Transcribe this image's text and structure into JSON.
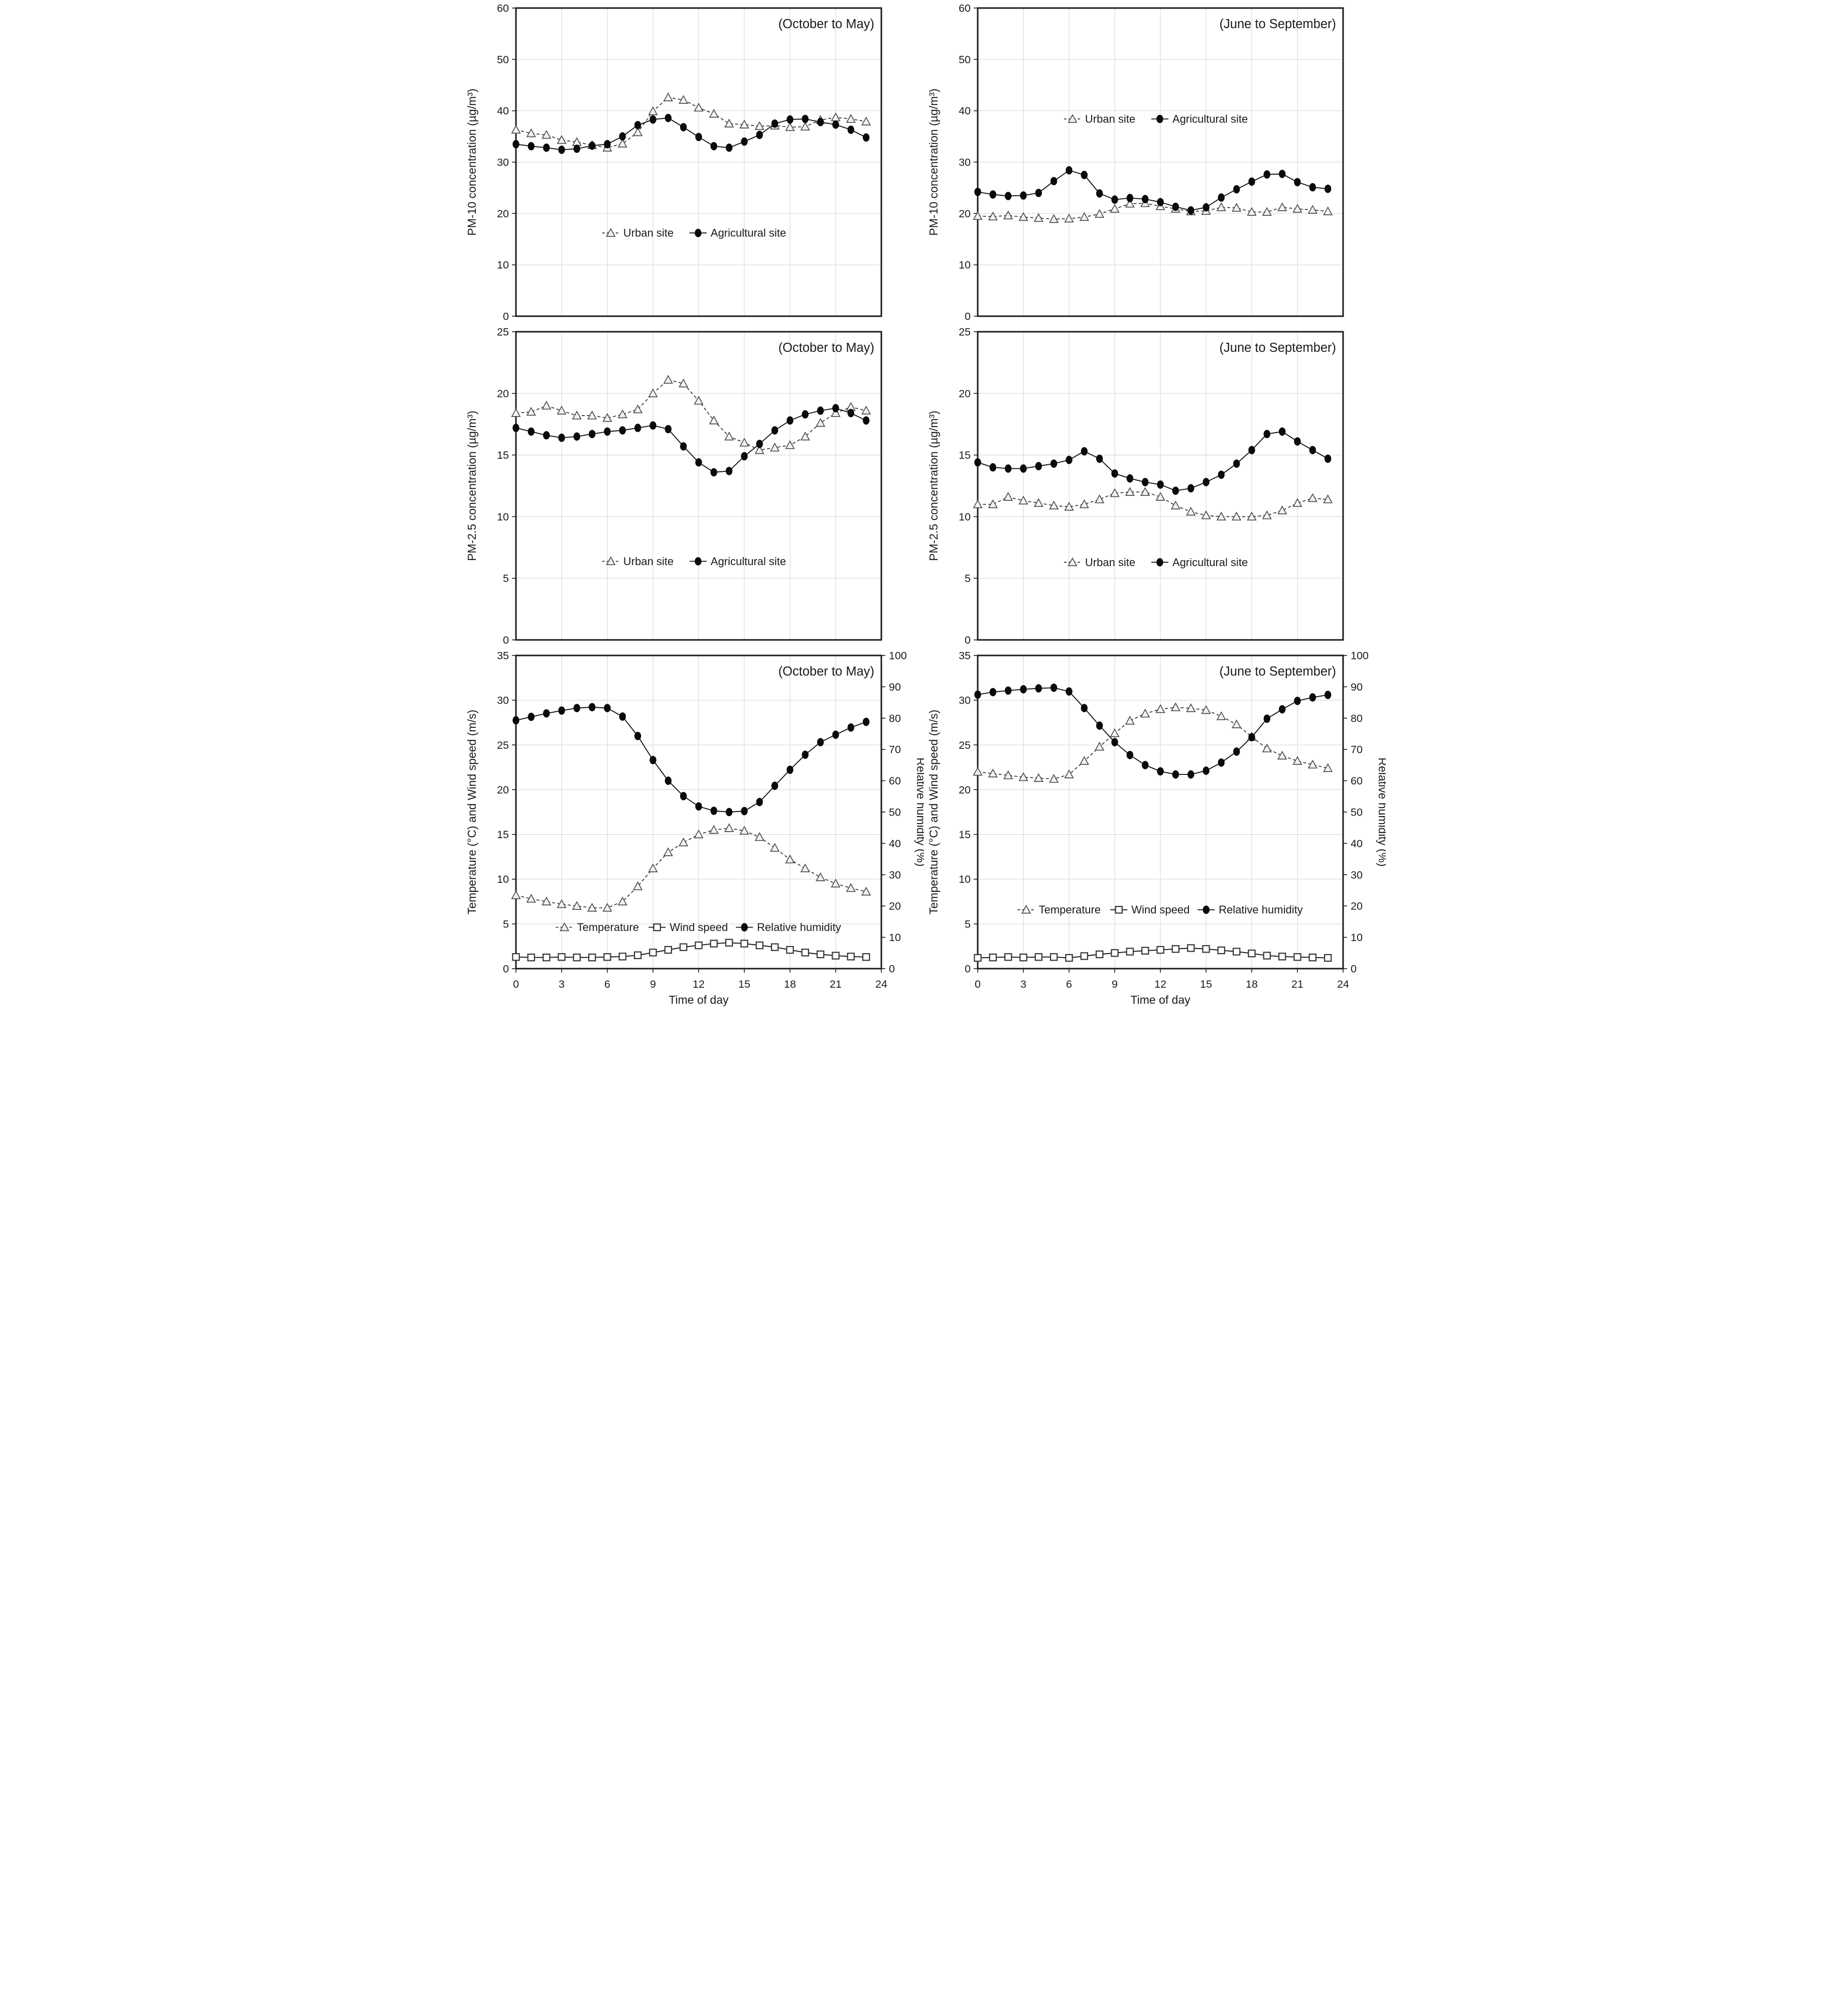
{
  "figure": {
    "background": "#ffffff",
    "panel_layout": "2 columns x 3 rows",
    "x_axis": {
      "label": "Time of day",
      "range": [
        0,
        24
      ],
      "ticks": [
        0,
        3,
        6,
        9,
        12,
        15,
        18,
        21,
        24
      ]
    }
  },
  "colors": {
    "background": "#ffffff",
    "plot_border": "#1a1a1a",
    "gridline": "#d9d9d9",
    "series_line": "#111111",
    "dashed_line": "#333333",
    "triangle_fill": "#f2f2f2",
    "triangle_stroke": "#4d4d4d",
    "square_fill": "#ffffff",
    "square_stroke": "#333333",
    "circle_fill": "#0a0a0a",
    "text": "#1a1a1a"
  },
  "chart_data": [
    {
      "id": "pm10-oct-may",
      "type": "line",
      "title": "(October to May)",
      "ylabel": "PM-10 concentration (µg/m³)",
      "ylim": [
        0,
        60
      ],
      "ystep": 10,
      "xlabel": null,
      "show_x_labels": false,
      "x_ticks": [
        0,
        3,
        6,
        9,
        12,
        15,
        18,
        21,
        24
      ],
      "grid": true,
      "legend_position": "inside-center",
      "legend_y_frac": 0.73,
      "x": [
        0,
        1,
        2,
        3,
        4,
        5,
        6,
        7,
        8,
        9,
        10,
        11,
        12,
        13,
        14,
        15,
        16,
        17,
        18,
        19,
        20,
        21,
        22,
        23
      ],
      "series": [
        {
          "name": "Urban site",
          "marker": "triangle",
          "line": "dashed",
          "axis": "y",
          "values": [
            36.3,
            35.6,
            35.3,
            34.3,
            33.9,
            33.3,
            32.8,
            33.6,
            35.8,
            39.9,
            42.6,
            42.1,
            40.6,
            39.4,
            37.5,
            37.3,
            37.0,
            37.1,
            36.8,
            36.9,
            38.2,
            38.7,
            38.4,
            37.9
          ]
        },
        {
          "name": "Agricultural site",
          "marker": "circle",
          "line": "solid",
          "axis": "y",
          "values": [
            33.5,
            33.1,
            32.8,
            32.4,
            32.6,
            33.2,
            33.5,
            35.0,
            37.2,
            38.3,
            38.6,
            36.8,
            34.9,
            33.1,
            32.8,
            34.0,
            35.3,
            37.5,
            38.3,
            38.4,
            37.8,
            37.3,
            36.3,
            34.8
          ]
        }
      ]
    },
    {
      "id": "pm10-jun-sep",
      "type": "line",
      "title": "(June to September)",
      "ylabel": "PM-10 concentration (µg/m³)",
      "ylim": [
        0,
        60
      ],
      "ystep": 10,
      "xlabel": null,
      "show_x_labels": false,
      "x_ticks": [
        0,
        3,
        6,
        9,
        12,
        15,
        18,
        21,
        24
      ],
      "grid": true,
      "legend_position": "inside-upper-center",
      "legend_y_frac": 0.36,
      "x": [
        0,
        1,
        2,
        3,
        4,
        5,
        6,
        7,
        8,
        9,
        10,
        11,
        12,
        13,
        14,
        15,
        16,
        17,
        18,
        19,
        20,
        21,
        22,
        23
      ],
      "series": [
        {
          "name": "Urban site",
          "marker": "triangle",
          "line": "dashed",
          "axis": "y",
          "values": [
            19.5,
            19.4,
            19.6,
            19.3,
            19.1,
            18.9,
            19.0,
            19.3,
            19.9,
            20.9,
            21.9,
            22.0,
            21.4,
            20.9,
            20.4,
            20.5,
            21.2,
            21.1,
            20.3,
            20.3,
            21.2,
            20.9,
            20.7,
            20.4
          ]
        },
        {
          "name": "Agricultural site",
          "marker": "circle",
          "line": "solid",
          "axis": "y",
          "values": [
            24.2,
            23.7,
            23.4,
            23.5,
            24.0,
            26.3,
            28.4,
            27.5,
            23.9,
            22.7,
            23.0,
            22.8,
            22.2,
            21.3,
            20.6,
            21.2,
            23.1,
            24.7,
            26.2,
            27.6,
            27.7,
            26.1,
            25.1,
            24.8
          ]
        }
      ]
    },
    {
      "id": "pm25-oct-may",
      "type": "line",
      "title": "(October to May)",
      "ylabel": "PM-2.5 concentration (µg/m³)",
      "ylim": [
        0,
        25
      ],
      "ystep": 5,
      "xlabel": null,
      "show_x_labels": false,
      "x_ticks": [
        0,
        3,
        6,
        9,
        12,
        15,
        18,
        21,
        24
      ],
      "grid": true,
      "legend_position": "inside-center",
      "legend_y_frac": 0.745,
      "x": [
        0,
        1,
        2,
        3,
        4,
        5,
        6,
        7,
        8,
        9,
        10,
        11,
        12,
        13,
        14,
        15,
        16,
        17,
        18,
        19,
        20,
        21,
        22,
        23
      ],
      "series": [
        {
          "name": "Urban site",
          "marker": "triangle",
          "line": "dashed",
          "axis": "y",
          "values": [
            18.4,
            18.5,
            19.0,
            18.6,
            18.2,
            18.2,
            18.0,
            18.3,
            18.7,
            20.0,
            21.1,
            20.8,
            19.4,
            17.8,
            16.5,
            16.0,
            15.4,
            15.6,
            15.8,
            16.5,
            17.6,
            18.4,
            18.9,
            18.6
          ]
        },
        {
          "name": "Agricultural site",
          "marker": "circle",
          "line": "solid",
          "axis": "y",
          "values": [
            17.2,
            16.9,
            16.6,
            16.4,
            16.5,
            16.7,
            16.9,
            17.0,
            17.2,
            17.4,
            17.1,
            15.7,
            14.4,
            13.6,
            13.7,
            14.9,
            15.9,
            17.0,
            17.8,
            18.3,
            18.6,
            18.8,
            18.4,
            17.8
          ]
        }
      ]
    },
    {
      "id": "pm25-jun-sep",
      "type": "line",
      "title": "(June to September)",
      "ylabel": "PM-2.5 concentration (µg/m³)",
      "ylim": [
        0,
        25
      ],
      "ystep": 5,
      "xlabel": null,
      "show_x_labels": false,
      "x_ticks": [
        0,
        3,
        6,
        9,
        12,
        15,
        18,
        21,
        24
      ],
      "grid": true,
      "legend_position": "inside-center",
      "legend_y_frac": 0.748,
      "x": [
        0,
        1,
        2,
        3,
        4,
        5,
        6,
        7,
        8,
        9,
        10,
        11,
        12,
        13,
        14,
        15,
        16,
        17,
        18,
        19,
        20,
        21,
        22,
        23
      ],
      "series": [
        {
          "name": "Urban site",
          "marker": "triangle",
          "line": "dashed",
          "axis": "y",
          "values": [
            11.0,
            11.0,
            11.6,
            11.3,
            11.1,
            10.9,
            10.8,
            11.0,
            11.4,
            11.9,
            12.0,
            12.0,
            11.6,
            10.9,
            10.4,
            10.1,
            10.0,
            10.0,
            10.0,
            10.1,
            10.5,
            11.1,
            11.5,
            11.4
          ]
        },
        {
          "name": "Agricultural site",
          "marker": "circle",
          "line": "solid",
          "axis": "y",
          "values": [
            14.4,
            14.0,
            13.9,
            13.9,
            14.1,
            14.3,
            14.6,
            15.3,
            14.7,
            13.5,
            13.1,
            12.8,
            12.6,
            12.1,
            12.3,
            12.8,
            13.4,
            14.3,
            15.4,
            16.7,
            16.9,
            16.1,
            15.4,
            14.7
          ]
        }
      ]
    },
    {
      "id": "met-oct-may",
      "type": "line",
      "title": "(October to May)",
      "ylabel": "Temperature (°C) and Wind speed (m/s)",
      "ylim": [
        0,
        35
      ],
      "ystep": 5,
      "y2label": "Relative humidity (%)",
      "y2lim": [
        0,
        100
      ],
      "y2step": 10,
      "xlabel": "Time of day",
      "show_x_labels": true,
      "x_ticks": [
        0,
        3,
        6,
        9,
        12,
        15,
        18,
        21,
        24
      ],
      "grid": true,
      "legend_position": "inside-lower-center",
      "legend_y_frac": 0.868,
      "x": [
        0,
        1,
        2,
        3,
        4,
        5,
        6,
        7,
        8,
        9,
        10,
        11,
        12,
        13,
        14,
        15,
        16,
        17,
        18,
        19,
        20,
        21,
        22,
        23
      ],
      "series": [
        {
          "name": "Temperature",
          "marker": "triangle",
          "line": "dashed",
          "axis": "y",
          "values": [
            8.2,
            7.8,
            7.5,
            7.2,
            7.0,
            6.8,
            6.8,
            7.5,
            9.2,
            11.2,
            13.0,
            14.1,
            15.0,
            15.5,
            15.7,
            15.4,
            14.7,
            13.5,
            12.2,
            11.2,
            10.2,
            9.5,
            9.0,
            8.6
          ]
        },
        {
          "name": "Wind speed",
          "marker": "square",
          "line": "solid",
          "axis": "y",
          "values": [
            1.3,
            1.25,
            1.25,
            1.3,
            1.25,
            1.25,
            1.3,
            1.35,
            1.5,
            1.8,
            2.1,
            2.4,
            2.6,
            2.8,
            2.9,
            2.8,
            2.6,
            2.4,
            2.1,
            1.8,
            1.6,
            1.45,
            1.35,
            1.3
          ]
        },
        {
          "name": "Relative humidity",
          "marker": "circle",
          "line": "solid",
          "axis": "y2",
          "values": [
            79.3,
            80.4,
            81.5,
            82.4,
            83.2,
            83.5,
            83.2,
            80.5,
            74.3,
            66.6,
            60.0,
            55.1,
            51.8,
            50.4,
            50.0,
            50.3,
            53.2,
            58.4,
            63.5,
            68.3,
            72.3,
            74.7,
            77.0,
            78.8
          ]
        }
      ]
    },
    {
      "id": "met-jun-sep",
      "type": "line",
      "title": "(June to September)",
      "ylabel": "Temperature (°C) and Wind speed (m/s)",
      "ylim": [
        0,
        35
      ],
      "ystep": 5,
      "y2label": "Relative humidity (%)",
      "y2lim": [
        0,
        100
      ],
      "y2step": 10,
      "xlabel": "Time of day",
      "show_x_labels": true,
      "x_ticks": [
        0,
        3,
        6,
        9,
        12,
        15,
        18,
        21,
        24
      ],
      "grid": true,
      "legend_position": "inside-lower-center",
      "legend_y_frac": 0.812,
      "x": [
        0,
        1,
        2,
        3,
        4,
        5,
        6,
        7,
        8,
        9,
        10,
        11,
        12,
        13,
        14,
        15,
        16,
        17,
        18,
        19,
        20,
        21,
        22,
        23
      ],
      "series": [
        {
          "name": "Temperature",
          "marker": "triangle",
          "line": "dashed",
          "axis": "y",
          "values": [
            22.0,
            21.8,
            21.6,
            21.4,
            21.3,
            21.2,
            21.7,
            23.2,
            24.8,
            26.3,
            27.7,
            28.5,
            29.0,
            29.2,
            29.1,
            28.9,
            28.2,
            27.3,
            25.9,
            24.6,
            23.8,
            23.2,
            22.8,
            22.4
          ]
        },
        {
          "name": "Wind speed",
          "marker": "square",
          "line": "solid",
          "axis": "y",
          "values": [
            1.2,
            1.25,
            1.3,
            1.25,
            1.3,
            1.3,
            1.2,
            1.4,
            1.6,
            1.75,
            1.9,
            2.0,
            2.1,
            2.2,
            2.3,
            2.2,
            2.05,
            1.9,
            1.7,
            1.45,
            1.35,
            1.3,
            1.25,
            1.2
          ]
        },
        {
          "name": "Relative humidity",
          "marker": "circle",
          "line": "solid",
          "axis": "y2",
          "values": [
            87.5,
            88.3,
            88.8,
            89.2,
            89.5,
            89.7,
            88.5,
            83.2,
            77.6,
            72.3,
            68.2,
            65.0,
            63.0,
            62.0,
            62.0,
            63.2,
            65.8,
            69.3,
            73.9,
            79.8,
            82.8,
            85.5,
            86.6,
            87.4
          ]
        }
      ]
    }
  ]
}
